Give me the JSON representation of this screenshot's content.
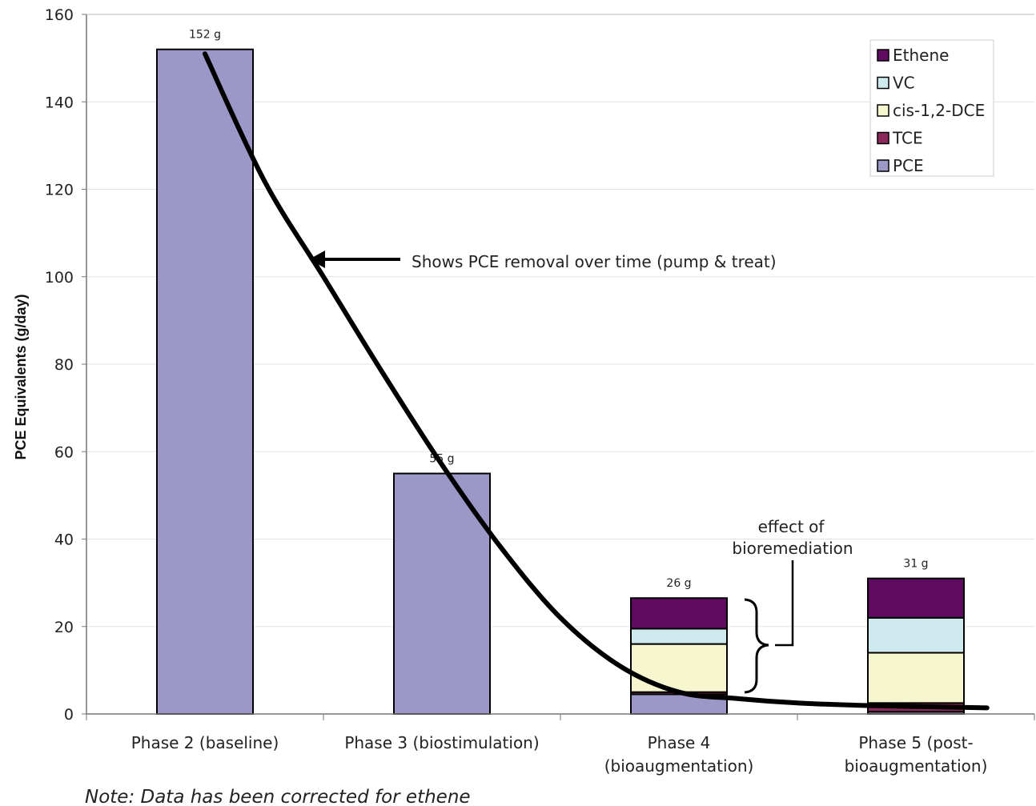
{
  "chart_data": {
    "type": "bar",
    "stacked": true,
    "title": "",
    "xlabel": "",
    "ylabel": "PCE Equivalents (g/day)",
    "ylim": [
      0,
      160
    ],
    "yticks": [
      "0",
      "20",
      "40",
      "60",
      "80",
      "100",
      "120",
      "140",
      "160"
    ],
    "grid": true,
    "legend_position": "top-right",
    "categories": [
      [
        "Phase 2 (baseline)"
      ],
      [
        "Phase 3 (biostimulation)"
      ],
      [
        "Phase 4",
        "(bioaugmentation)"
      ],
      [
        "Phase 5 (post-",
        "bioaugmentation)"
      ]
    ],
    "series": [
      {
        "name": "PCE",
        "color": "#9b98c8",
        "values": [
          152,
          55,
          4.5,
          0.5
        ]
      },
      {
        "name": "TCE",
        "color": "#8b2a5a",
        "values": [
          0,
          0,
          0.5,
          2
        ]
      },
      {
        "name": "cis-1,2-DCE",
        "color": "#f6f6cf",
        "values": [
          0,
          0,
          11,
          11.5
        ]
      },
      {
        "name": "VC",
        "color": "#cfeaee",
        "values": [
          0,
          0,
          3.5,
          8
        ]
      },
      {
        "name": "Ethene",
        "color": "#600a62",
        "values": [
          0,
          0,
          7,
          9
        ]
      }
    ],
    "legend_order": [
      "Ethene",
      "VC",
      "cis-1,2-DCE",
      "TCE",
      "PCE"
    ],
    "data_labels": [
      {
        "text": "152 g",
        "category": 0,
        "value": 152
      },
      {
        "text": "55 g",
        "category": 1,
        "value": 55
      },
      {
        "text": "26 g",
        "category": 2,
        "value": 26.5
      },
      {
        "text": "31 g",
        "category": 3,
        "value": 31
      }
    ],
    "trend_curve": [
      [
        0,
        151
      ],
      [
        0.25,
        122
      ],
      [
        0.5,
        100
      ],
      [
        0.75,
        78
      ],
      [
        1.0,
        57
      ],
      [
        1.25,
        38
      ],
      [
        1.5,
        22
      ],
      [
        1.75,
        11
      ],
      [
        2.0,
        5
      ],
      [
        2.25,
        3.5
      ],
      [
        2.5,
        2.5
      ],
      [
        2.75,
        2
      ],
      [
        3.0,
        1.7
      ],
      [
        3.3,
        1.4
      ]
    ],
    "annotations": {
      "trend": "Shows PCE removal over time (pump & treat)",
      "bio_line1": "effect of",
      "bio_line2": "bioremediation"
    },
    "note": "Note: Data has been corrected for ethene"
  }
}
